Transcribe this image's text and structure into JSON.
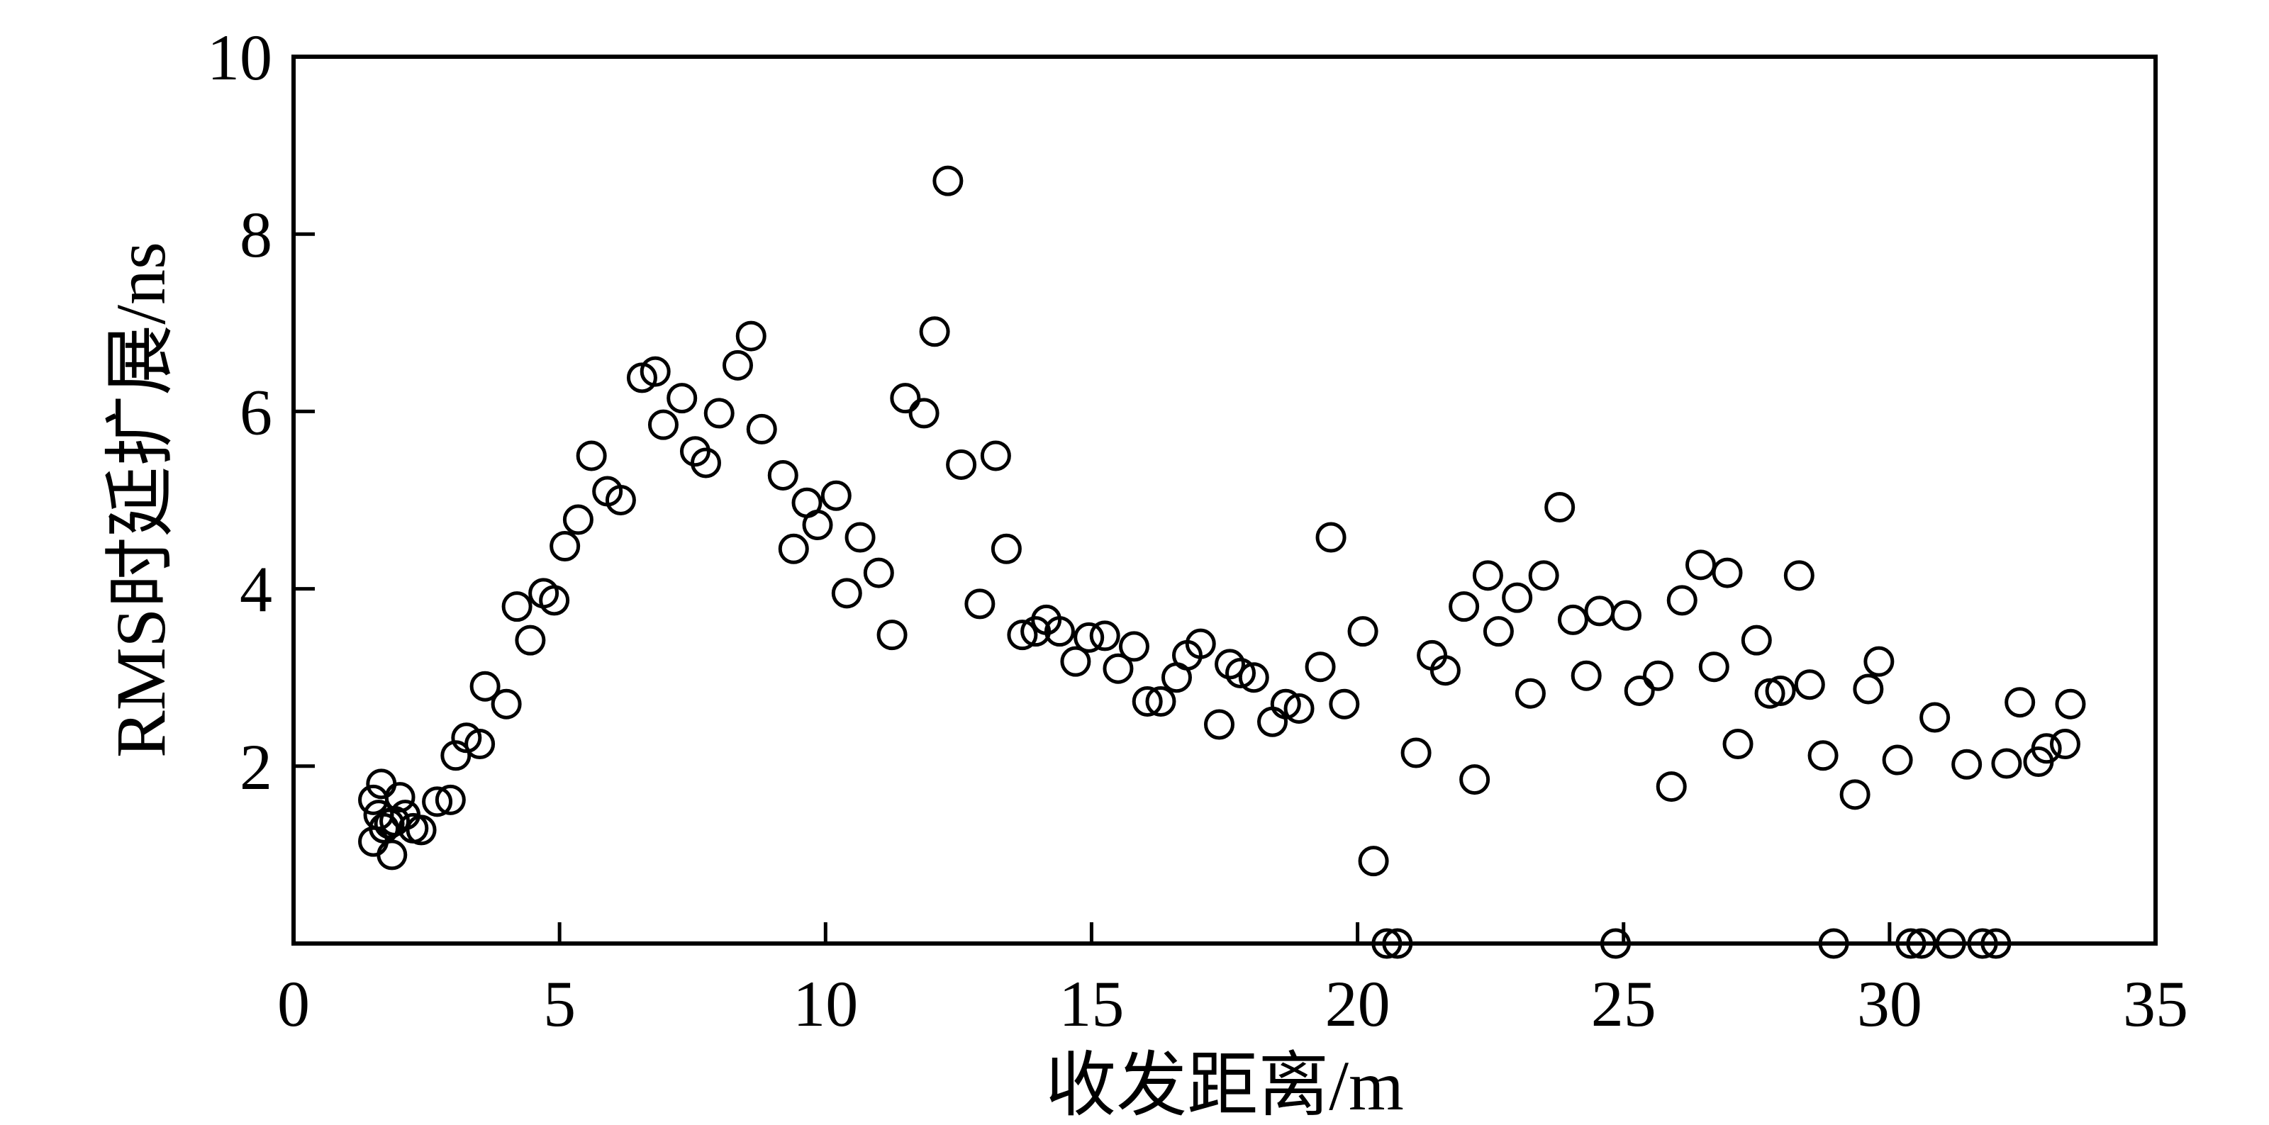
{
  "chart_data": {
    "type": "scatter",
    "title": "",
    "xlabel": "收发距离/m",
    "ylabel": "RMS时延扩展/ns",
    "xlim": [
      0,
      35
    ],
    "ylim": [
      0,
      10
    ],
    "xticks": [
      0,
      5,
      10,
      15,
      20,
      25,
      30,
      35
    ],
    "yticks": [
      2,
      4,
      6,
      8,
      10
    ],
    "x_tick_labels": [
      "0",
      "5",
      "10",
      "15",
      "20",
      "25",
      "30",
      "35"
    ],
    "y_tick_labels": [
      "2",
      "4",
      "6",
      "8",
      "10"
    ],
    "grid": false,
    "legend": "none",
    "marker": "open-circle",
    "marker_color": "#000000",
    "series": [
      {
        "points": [
          [
            1.5,
            1.15
          ],
          [
            1.5,
            1.62
          ],
          [
            1.6,
            1.45
          ],
          [
            1.65,
            1.8
          ],
          [
            1.7,
            1.3
          ],
          [
            1.8,
            1.35
          ],
          [
            1.85,
            1.0
          ],
          [
            1.9,
            1.38
          ],
          [
            2.0,
            1.65
          ],
          [
            2.1,
            1.45
          ],
          [
            2.25,
            1.3
          ],
          [
            2.4,
            1.28
          ],
          [
            2.7,
            1.6
          ],
          [
            2.95,
            1.62
          ],
          [
            3.05,
            2.12
          ],
          [
            3.25,
            2.32
          ],
          [
            3.5,
            2.25
          ],
          [
            3.6,
            2.9
          ],
          [
            4.0,
            2.7
          ],
          [
            4.2,
            3.8
          ],
          [
            4.45,
            3.42
          ],
          [
            4.7,
            3.95
          ],
          [
            4.9,
            3.87
          ],
          [
            5.1,
            4.48
          ],
          [
            5.35,
            4.78
          ],
          [
            5.6,
            5.5
          ],
          [
            5.9,
            5.1
          ],
          [
            6.15,
            5.0
          ],
          [
            6.55,
            6.38
          ],
          [
            6.8,
            6.45
          ],
          [
            6.95,
            5.85
          ],
          [
            7.3,
            6.15
          ],
          [
            7.55,
            5.55
          ],
          [
            7.75,
            5.42
          ],
          [
            8.0,
            5.98
          ],
          [
            8.35,
            6.52
          ],
          [
            8.6,
            6.85
          ],
          [
            8.8,
            5.8
          ],
          [
            9.2,
            5.28
          ],
          [
            9.4,
            4.45
          ],
          [
            9.65,
            4.97
          ],
          [
            9.85,
            4.72
          ],
          [
            10.2,
            5.05
          ],
          [
            10.4,
            3.95
          ],
          [
            10.65,
            4.58
          ],
          [
            11.0,
            4.18
          ],
          [
            11.25,
            3.48
          ],
          [
            11.5,
            6.15
          ],
          [
            11.85,
            5.98
          ],
          [
            12.05,
            6.9
          ],
          [
            12.3,
            8.6
          ],
          [
            12.55,
            5.4
          ],
          [
            12.9,
            3.83
          ],
          [
            13.2,
            5.5
          ],
          [
            13.4,
            4.45
          ],
          [
            13.7,
            3.48
          ],
          [
            13.95,
            3.52
          ],
          [
            14.15,
            3.65
          ],
          [
            14.4,
            3.52
          ],
          [
            14.7,
            3.18
          ],
          [
            14.95,
            3.45
          ],
          [
            15.25,
            3.47
          ],
          [
            15.5,
            3.1
          ],
          [
            15.8,
            3.35
          ],
          [
            16.05,
            2.73
          ],
          [
            16.3,
            2.73
          ],
          [
            16.6,
            3.0
          ],
          [
            16.8,
            3.25
          ],
          [
            17.05,
            3.38
          ],
          [
            17.4,
            2.47
          ],
          [
            17.6,
            3.15
          ],
          [
            17.8,
            3.05
          ],
          [
            18.05,
            3.0
          ],
          [
            18.4,
            2.5
          ],
          [
            18.65,
            2.7
          ],
          [
            18.9,
            2.65
          ],
          [
            19.3,
            3.12
          ],
          [
            19.5,
            4.58
          ],
          [
            19.75,
            2.7
          ],
          [
            20.1,
            3.52
          ],
          [
            20.3,
            0.93
          ],
          [
            20.55,
            0.0
          ],
          [
            20.75,
            0.0
          ],
          [
            21.1,
            2.15
          ],
          [
            21.4,
            3.25
          ],
          [
            21.65,
            3.08
          ],
          [
            22.0,
            3.8
          ],
          [
            22.2,
            1.85
          ],
          [
            22.45,
            4.15
          ],
          [
            22.65,
            3.52
          ],
          [
            23.0,
            3.9
          ],
          [
            23.25,
            2.82
          ],
          [
            23.5,
            4.15
          ],
          [
            23.8,
            4.92
          ],
          [
            24.05,
            3.65
          ],
          [
            24.3,
            3.02
          ],
          [
            24.55,
            3.75
          ],
          [
            24.85,
            0.0
          ],
          [
            25.05,
            3.7
          ],
          [
            25.3,
            2.85
          ],
          [
            25.65,
            3.02
          ],
          [
            25.9,
            1.77
          ],
          [
            26.1,
            3.87
          ],
          [
            26.45,
            4.27
          ],
          [
            26.7,
            3.12
          ],
          [
            26.95,
            4.18
          ],
          [
            27.15,
            2.25
          ],
          [
            27.5,
            3.42
          ],
          [
            27.75,
            2.82
          ],
          [
            27.95,
            2.85
          ],
          [
            28.3,
            4.15
          ],
          [
            28.5,
            2.92
          ],
          [
            28.75,
            2.12
          ],
          [
            28.95,
            0.0
          ],
          [
            29.35,
            1.68
          ],
          [
            29.6,
            2.87
          ],
          [
            29.8,
            3.18
          ],
          [
            30.15,
            2.07
          ],
          [
            30.4,
            0.0
          ],
          [
            30.6,
            0.0
          ],
          [
            30.85,
            2.55
          ],
          [
            31.15,
            0.0
          ],
          [
            31.45,
            2.02
          ],
          [
            31.75,
            0.0
          ],
          [
            32.0,
            0.0
          ],
          [
            32.2,
            2.03
          ],
          [
            32.45,
            2.72
          ],
          [
            32.8,
            2.05
          ],
          [
            32.95,
            2.2
          ],
          [
            33.3,
            2.25
          ],
          [
            33.4,
            2.7
          ]
        ]
      }
    ]
  }
}
